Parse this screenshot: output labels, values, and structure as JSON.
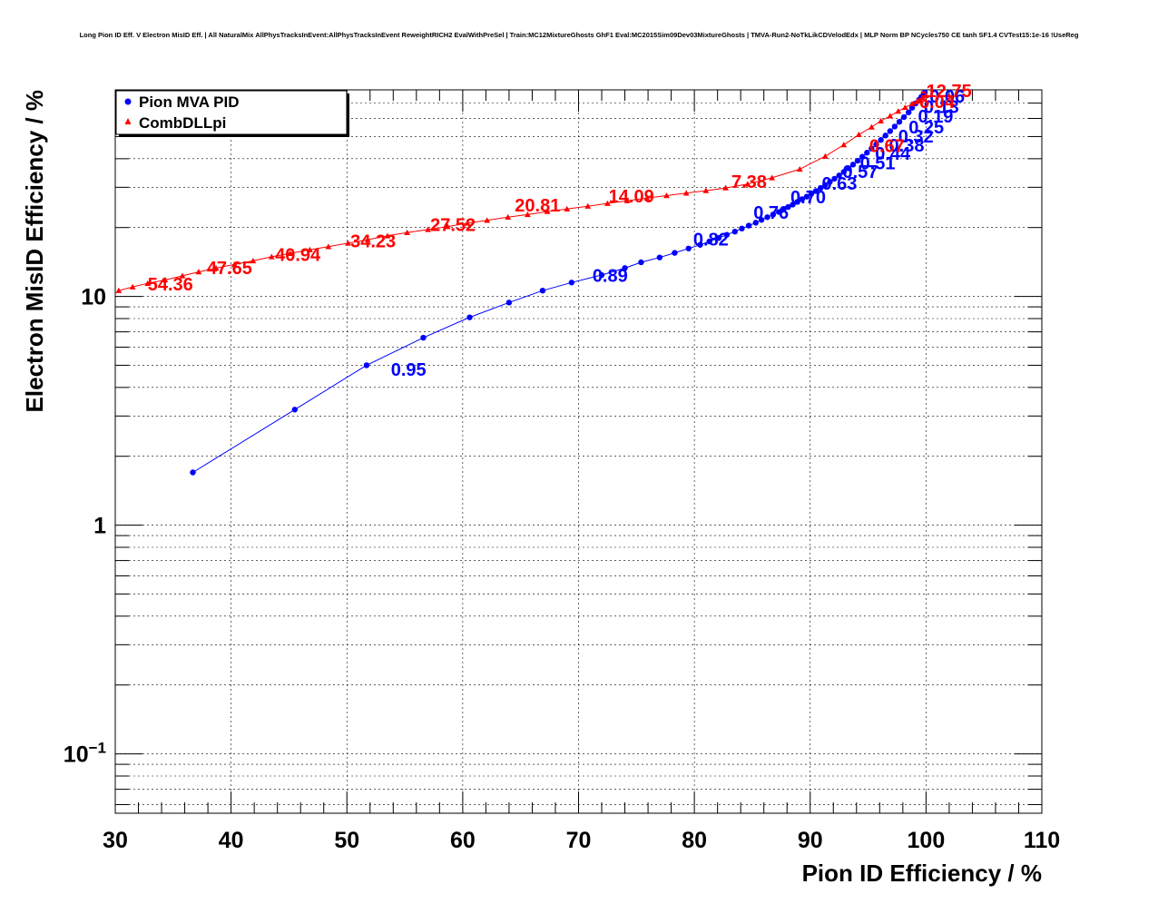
{
  "chart_data": {
    "type": "scatter",
    "title": "Long Pion ID Eff. V Electron MisID Eff. | All NaturalMix AllPhysTracksInEvent:AllPhysTracksInEvent ReweightRICH2 EvalWithPreSel | Train:MC12MixtureGhosts GhF1 Eval:MC2015Sim09Dev03MixtureGhosts | TMVA-Run2-NoTkLikCDVelodEdx | MLP Norm BP NCycles750 CE tanh SF1.4 CVTest15:1e-16 !UseReg",
    "xlabel": "Pion ID Efficiency / %",
    "ylabel": "Electron MisID Efficiency / %",
    "xlim": [
      30,
      110
    ],
    "ylim": [
      0.055,
      80
    ],
    "yscale": "log",
    "grid": true,
    "legend_position": "top-left",
    "x_ticks": [
      "30",
      "40",
      "50",
      "60",
      "70",
      "80",
      "90",
      "100",
      "110"
    ],
    "y_ticks": [
      "1",
      "10"
    ],
    "y_tick_sci": {
      "base": "10",
      "exp": "−1"
    },
    "series": [
      {
        "name": "Pion MVA PID",
        "color": "#0000ff",
        "marker": "circle",
        "x": [
          36.7,
          45.5,
          51.7,
          56.6,
          60.6,
          64.0,
          66.9,
          69.4,
          72.0,
          74.0,
          75.4,
          77.0,
          78.3,
          79.5,
          80.5,
          81.3,
          82.1,
          82.8,
          83.5,
          84.1,
          84.7,
          85.3,
          85.8,
          86.3,
          86.8,
          87.3,
          87.7,
          88.1,
          88.5,
          88.9,
          89.3,
          89.7,
          90.1,
          90.5,
          90.9,
          91.3,
          91.7,
          92.1,
          92.5,
          92.9,
          93.3,
          93.7,
          94.1,
          94.5,
          94.9,
          95.3,
          95.7,
          96.1,
          96.5,
          96.9,
          97.3,
          97.7,
          98.1,
          98.5,
          98.8,
          99.1,
          99.4,
          99.6,
          99.8,
          99.9
        ],
        "y": [
          1.7,
          3.2,
          5.0,
          6.6,
          8.1,
          9.4,
          10.6,
          11.5,
          12.4,
          13.3,
          14.1,
          14.8,
          15.5,
          16.2,
          16.8,
          17.4,
          18.0,
          18.6,
          19.2,
          19.8,
          20.4,
          21.0,
          21.6,
          22.2,
          22.8,
          23.4,
          24.0,
          24.6,
          25.2,
          25.9,
          26.6,
          27.3,
          28.1,
          28.9,
          29.8,
          30.7,
          31.7,
          32.7,
          33.8,
          35.0,
          36.3,
          37.7,
          39.2,
          40.8,
          42.5,
          44.3,
          46.2,
          48.3,
          50.5,
          52.8,
          55.3,
          58.0,
          60.8,
          63.8,
          66.8,
          69.8,
          72.5,
          74.6,
          76.5,
          78.0
        ],
        "labels": [
          {
            "text": "0.95",
            "x": 53.8,
            "y": 4.5
          },
          {
            "text": "0.89",
            "x": 71.2,
            "y": 11.6
          },
          {
            "text": "0.82",
            "x": 79.9,
            "y": 16.7
          },
          {
            "text": "0.76",
            "x": 85.1,
            "y": 21.9
          },
          {
            "text": "0.70",
            "x": 88.3,
            "y": 25.5
          },
          {
            "text": "0.63",
            "x": 91.0,
            "y": 29.3
          },
          {
            "text": "0.57",
            "x": 92.8,
            "y": 33.0
          },
          {
            "text": "0.51",
            "x": 94.3,
            "y": 36.0
          },
          {
            "text": "0.44",
            "x": 95.6,
            "y": 39.5
          },
          {
            "text": "0.38",
            "x": 96.8,
            "y": 43.0
          },
          {
            "text": "0.32",
            "x": 97.6,
            "y": 47.0
          },
          {
            "text": "0.25",
            "x": 98.5,
            "y": 51.5
          },
          {
            "text": "0.19",
            "x": 99.3,
            "y": 57.5
          },
          {
            "text": "0.13",
            "x": 99.8,
            "y": 63.5
          },
          {
            "text": "0.06",
            "x": 100.3,
            "y": 70.5
          }
        ]
      },
      {
        "name": "CombDLLpi",
        "color": "#ff0000",
        "marker": "triangle",
        "x": [
          30.3,
          31.5,
          32.8,
          34.3,
          35.8,
          37.2,
          38.7,
          40.3,
          41.9,
          43.5,
          45.1,
          46.8,
          48.4,
          50.1,
          51.8,
          53.5,
          55.2,
          57.0,
          58.7,
          60.4,
          62.1,
          63.9,
          65.6,
          67.3,
          69.0,
          70.8,
          72.5,
          74.2,
          75.9,
          77.6,
          79.3,
          81.0,
          82.7,
          84.6,
          86.7,
          89.1,
          91.3,
          92.9,
          94.2,
          95.3,
          96.1,
          96.9,
          97.6,
          98.2,
          98.8,
          99.3,
          99.7,
          100.0
        ],
        "y": [
          10.6,
          11.0,
          11.4,
          11.8,
          12.3,
          12.8,
          13.3,
          13.8,
          14.3,
          14.9,
          15.4,
          16.0,
          16.5,
          17.1,
          17.7,
          18.4,
          19.0,
          19.6,
          20.2,
          20.9,
          21.5,
          22.2,
          22.8,
          23.5,
          24.1,
          24.8,
          25.5,
          26.2,
          26.9,
          27.6,
          28.3,
          29.0,
          29.8,
          31.0,
          33.0,
          36.0,
          41.0,
          46.0,
          51.0,
          55.0,
          58.5,
          61.5,
          64.5,
          67.0,
          69.5,
          72.0,
          74.0,
          75.5
        ],
        "labels": [
          {
            "text": "54.36",
            "x": 32.8,
            "y": 10.6
          },
          {
            "text": "47.65",
            "x": 37.9,
            "y": 12.5
          },
          {
            "text": "40.94",
            "x": 43.8,
            "y": 14.3
          },
          {
            "text": "34.23",
            "x": 50.3,
            "y": 16.4
          },
          {
            "text": "27.52",
            "x": 57.2,
            "y": 19.3
          },
          {
            "text": "20.81",
            "x": 64.5,
            "y": 23.5
          },
          {
            "text": "14.09",
            "x": 72.6,
            "y": 25.8
          },
          {
            "text": "7.38",
            "x": 83.2,
            "y": 29.8
          },
          {
            "text": "0.67",
            "x": 95.1,
            "y": 42.8
          },
          {
            "text": "-6.04",
            "x": 98.9,
            "y": 66.5
          },
          {
            "text": "-12.75",
            "x": 99.5,
            "y": 74.5
          }
        ]
      }
    ]
  }
}
